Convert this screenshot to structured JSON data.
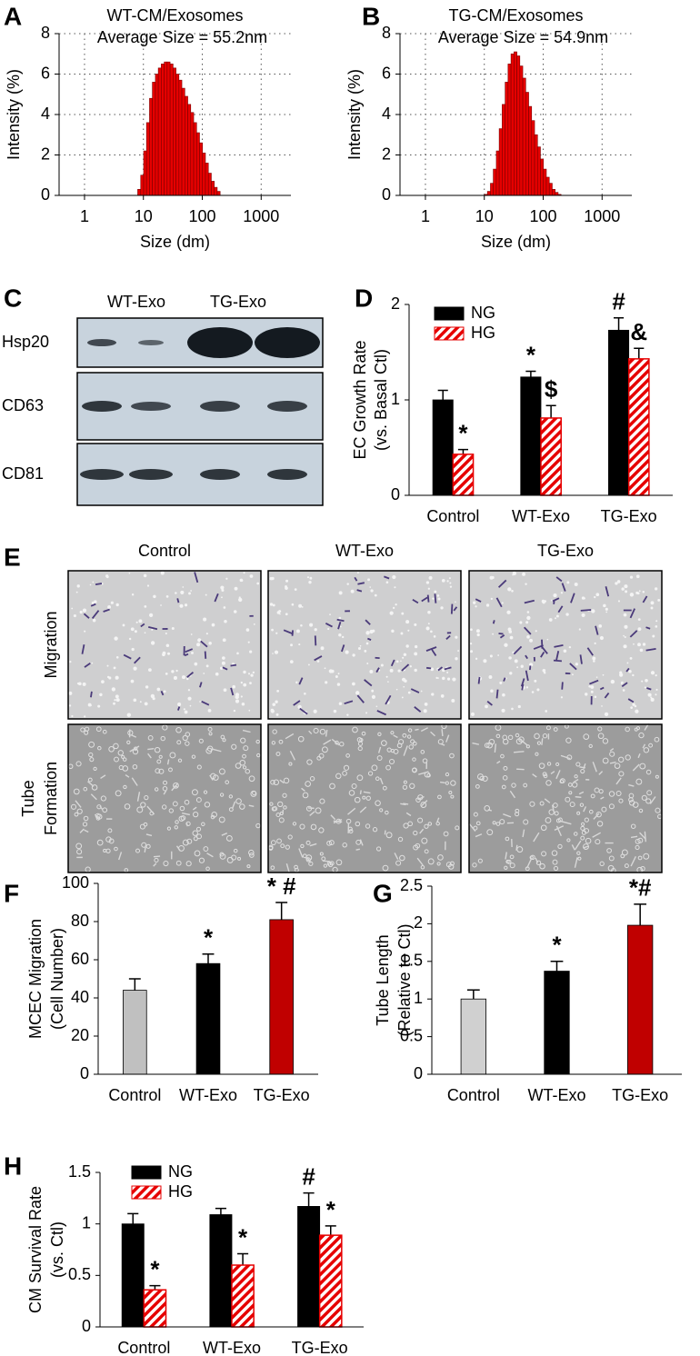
{
  "chart_data": [
    {
      "type": "histogram",
      "panel": "A",
      "title": "WT-CM/Exosomes",
      "subtitle": "Average Size = 55.2nm",
      "ylabel": "Intensity (%)",
      "xlabel": "Size (dm)",
      "log_x": true,
      "grid": true,
      "color": "#e60000",
      "bins": [
        8.0,
        9.0,
        10.1,
        11.3,
        12.7,
        14.2,
        16.0,
        17.9,
        20.1,
        22.6,
        25.3,
        28.4,
        31.9,
        35.8,
        40.1,
        45.0,
        50.5,
        56.7,
        63.6,
        71.4,
        80.1,
        89.8,
        100.8,
        113.1,
        126.9,
        142.4,
        159.8,
        179.3,
        201.2
      ],
      "values": [
        0.3,
        1.0,
        2.2,
        3.6,
        4.8,
        5.6,
        6.0,
        6.3,
        6.5,
        6.6,
        6.6,
        6.5,
        6.3,
        6.0,
        5.7,
        5.3,
        4.9,
        4.5,
        4.1,
        3.6,
        3.1,
        2.6,
        2.1,
        1.6,
        1.1,
        0.7,
        0.4,
        0.2
      ],
      "xlim": [
        0.37,
        3200
      ],
      "xticks": [
        1,
        10,
        100,
        1000
      ],
      "ylim": [
        0,
        8
      ],
      "yticks": [
        0,
        2,
        4,
        6,
        8
      ]
    },
    {
      "type": "histogram",
      "panel": "B",
      "title": "TG-CM/Exosomes",
      "subtitle": "Average Size = 54.9nm",
      "ylabel": "Intensity (%)",
      "xlabel": "Size (dm)",
      "log_x": true,
      "grid": true,
      "color": "#e60000",
      "bins": [
        8.0,
        9.0,
        10.1,
        11.3,
        12.7,
        14.2,
        16.0,
        17.9,
        20.1,
        22.6,
        25.3,
        28.4,
        31.9,
        35.8,
        40.1,
        45.0,
        50.5,
        56.7,
        63.6,
        71.4,
        80.1,
        89.8,
        100.8,
        113.1,
        126.9,
        142.4,
        159.8,
        179.3,
        201.2
      ],
      "values": [
        0,
        0,
        0.05,
        0.2,
        0.6,
        1.3,
        2.2,
        3.3,
        4.5,
        5.6,
        6.5,
        7.0,
        7.1,
        6.9,
        6.4,
        5.8,
        5.1,
        4.4,
        3.7,
        3.0,
        2.4,
        1.8,
        1.3,
        0.9,
        0.6,
        0.3,
        0.15,
        0.05
      ],
      "xlim": [
        0.37,
        3200
      ],
      "xticks": [
        1,
        10,
        100,
        1000
      ],
      "ylim": [
        0,
        8
      ],
      "yticks": [
        0,
        2,
        4,
        6,
        8
      ]
    },
    {
      "type": "blot",
      "panel": "C",
      "groups": [
        "WT-Exo",
        "TG-Exo"
      ],
      "rows": [
        "Hsp20",
        "CD63",
        "CD81"
      ]
    },
    {
      "type": "bar",
      "panel": "D",
      "ylabel": [
        "EC Growth Rate",
        "(vs. Basal Ctl)"
      ],
      "categories": [
        "Control",
        "WT-Exo",
        "TG-Exo"
      ],
      "series": [
        {
          "name": "NG",
          "color": "#000000",
          "values": [
            1.0,
            1.24,
            1.73
          ],
          "errors": [
            0.1,
            0.06,
            0.13
          ],
          "annotations": [
            null,
            "*",
            "#"
          ]
        },
        {
          "name": "HG",
          "color": "#e60000",
          "hatch": true,
          "values": [
            0.43,
            0.81,
            1.43
          ],
          "errors": [
            0.05,
            0.13,
            0.11
          ],
          "annotations": [
            "*",
            "$",
            "&"
          ]
        }
      ],
      "ylim": [
        0,
        2
      ],
      "yticks": [
        0,
        1,
        2
      ]
    },
    {
      "type": "image-grid",
      "panel": "E",
      "columns": [
        "Control",
        "WT-Exo",
        "TG-Exo"
      ],
      "rows": [
        [
          "Migration"
        ],
        [
          "Tube",
          "Formation"
        ]
      ]
    },
    {
      "type": "bar",
      "panel": "F",
      "ylabel": [
        "MCEC Migration",
        "(Cell Number)"
      ],
      "categories": [
        "Control",
        "WT-Exo",
        "TG-Exo"
      ],
      "series": [
        {
          "colors": [
            "#c0c0c0",
            "#000000",
            "#c00000"
          ],
          "values": [
            44,
            58,
            81
          ],
          "errors": [
            6,
            5,
            9
          ],
          "annotations": [
            null,
            "*",
            "* #"
          ]
        }
      ],
      "ylim": [
        0,
        100
      ],
      "yticks": [
        0,
        20,
        40,
        60,
        80,
        100
      ]
    },
    {
      "type": "bar",
      "panel": "G",
      "ylabel": [
        "Tube Length",
        "(Relative to Ctl)"
      ],
      "categories": [
        "Control",
        "WT-Exo",
        "TG-Exo"
      ],
      "series": [
        {
          "colors": [
            "#d0d0d0",
            "#000000",
            "#c00000"
          ],
          "values": [
            1.0,
            1.37,
            1.98
          ],
          "errors": [
            0.12,
            0.13,
            0.28
          ],
          "annotations": [
            null,
            "*",
            "*#"
          ]
        }
      ],
      "ylim": [
        0,
        2.5
      ],
      "yticks": [
        0,
        0.5,
        1,
        1.5,
        2,
        2.5
      ]
    },
    {
      "type": "bar",
      "panel": "H",
      "ylabel": [
        "CM Survival Rate",
        "(vs. Ctl)"
      ],
      "categories": [
        "Control",
        "WT-Exo",
        "TG-Exo"
      ],
      "series": [
        {
          "name": "NG",
          "color": "#000000",
          "values": [
            1.0,
            1.09,
            1.17
          ],
          "errors": [
            0.1,
            0.06,
            0.13
          ],
          "annotations": [
            null,
            null,
            "#"
          ]
        },
        {
          "name": "HG",
          "color": "#e60000",
          "hatch": true,
          "values": [
            0.36,
            0.6,
            0.89
          ],
          "errors": [
            0.04,
            0.11,
            0.09
          ],
          "annotations": [
            "*",
            "*",
            "*"
          ]
        }
      ],
      "ylim": [
        0,
        1.5
      ],
      "yticks": [
        0,
        0.5,
        1,
        1.5
      ]
    }
  ]
}
